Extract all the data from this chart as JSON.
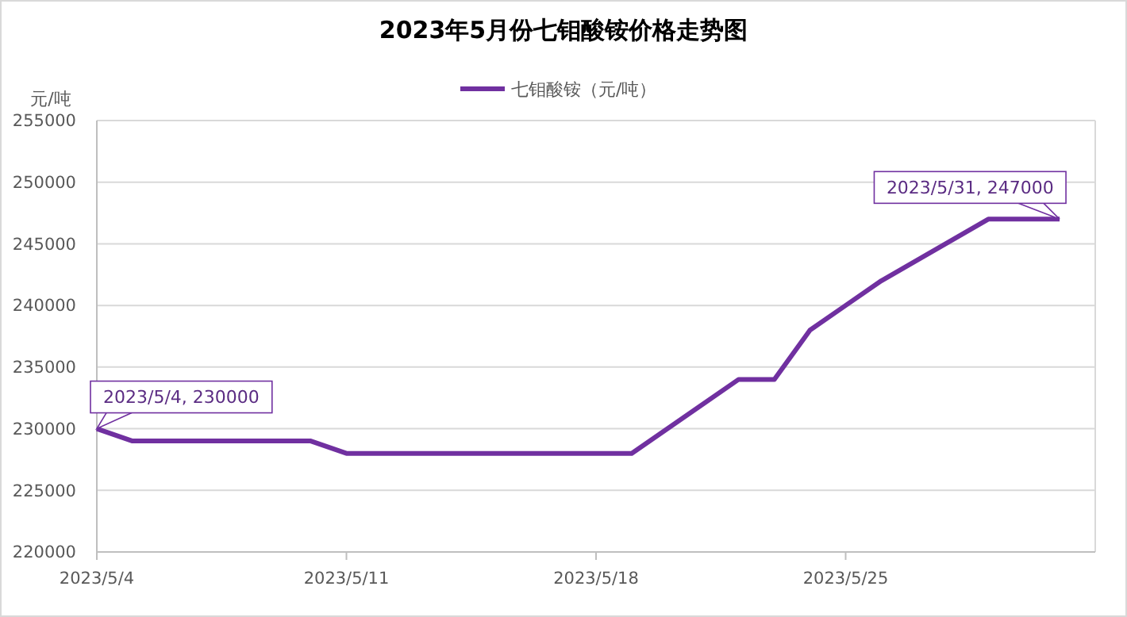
{
  "chart_data": {
    "type": "line",
    "title": "2023年5月份七钼酸铵价格走势图",
    "ylabel": "元/吨",
    "x": [
      "2023-05-04",
      "2023-05-05",
      "2023-05-08",
      "2023-05-09",
      "2023-05-10",
      "2023-05-11",
      "2023-05-12",
      "2023-05-15",
      "2023-05-16",
      "2023-05-17",
      "2023-05-18",
      "2023-05-19",
      "2023-05-22",
      "2023-05-23",
      "2023-05-24",
      "2023-05-25",
      "2023-05-26",
      "2023-05-29",
      "2023-05-30",
      "2023-05-31"
    ],
    "series": [
      {
        "name": "七钼酸铵（元/吨）",
        "color": "#7030a0",
        "values": [
          230000,
          229000,
          229000,
          229000,
          229000,
          228000,
          228000,
          228000,
          228000,
          228000,
          228000,
          228000,
          234000,
          234000,
          238000,
          240000,
          242000,
          247000,
          247000,
          247000
        ]
      }
    ],
    "xlim": [
      "2023-05-04",
      "2023-06-01"
    ],
    "xticks": [
      {
        "value": "2023-05-04",
        "label": "2023/5/4"
      },
      {
        "value": "2023-05-11",
        "label": "2023/5/11"
      },
      {
        "value": "2023-05-18",
        "label": "2023/5/18"
      },
      {
        "value": "2023-05-25",
        "label": "2023/5/25"
      }
    ],
    "ylim": [
      220000,
      255000
    ],
    "yticks": [
      220000,
      225000,
      230000,
      235000,
      240000,
      245000,
      250000,
      255000
    ],
    "grid": "y",
    "legend": "top",
    "marker": "none",
    "line_style": "solid",
    "annotations": [
      {
        "text": "2023/5/4, 230000",
        "x": "2023-05-04",
        "y": 230000
      },
      {
        "text": "2023/5/31, 247000",
        "x": "2023-05-31",
        "y": 247000
      }
    ]
  }
}
